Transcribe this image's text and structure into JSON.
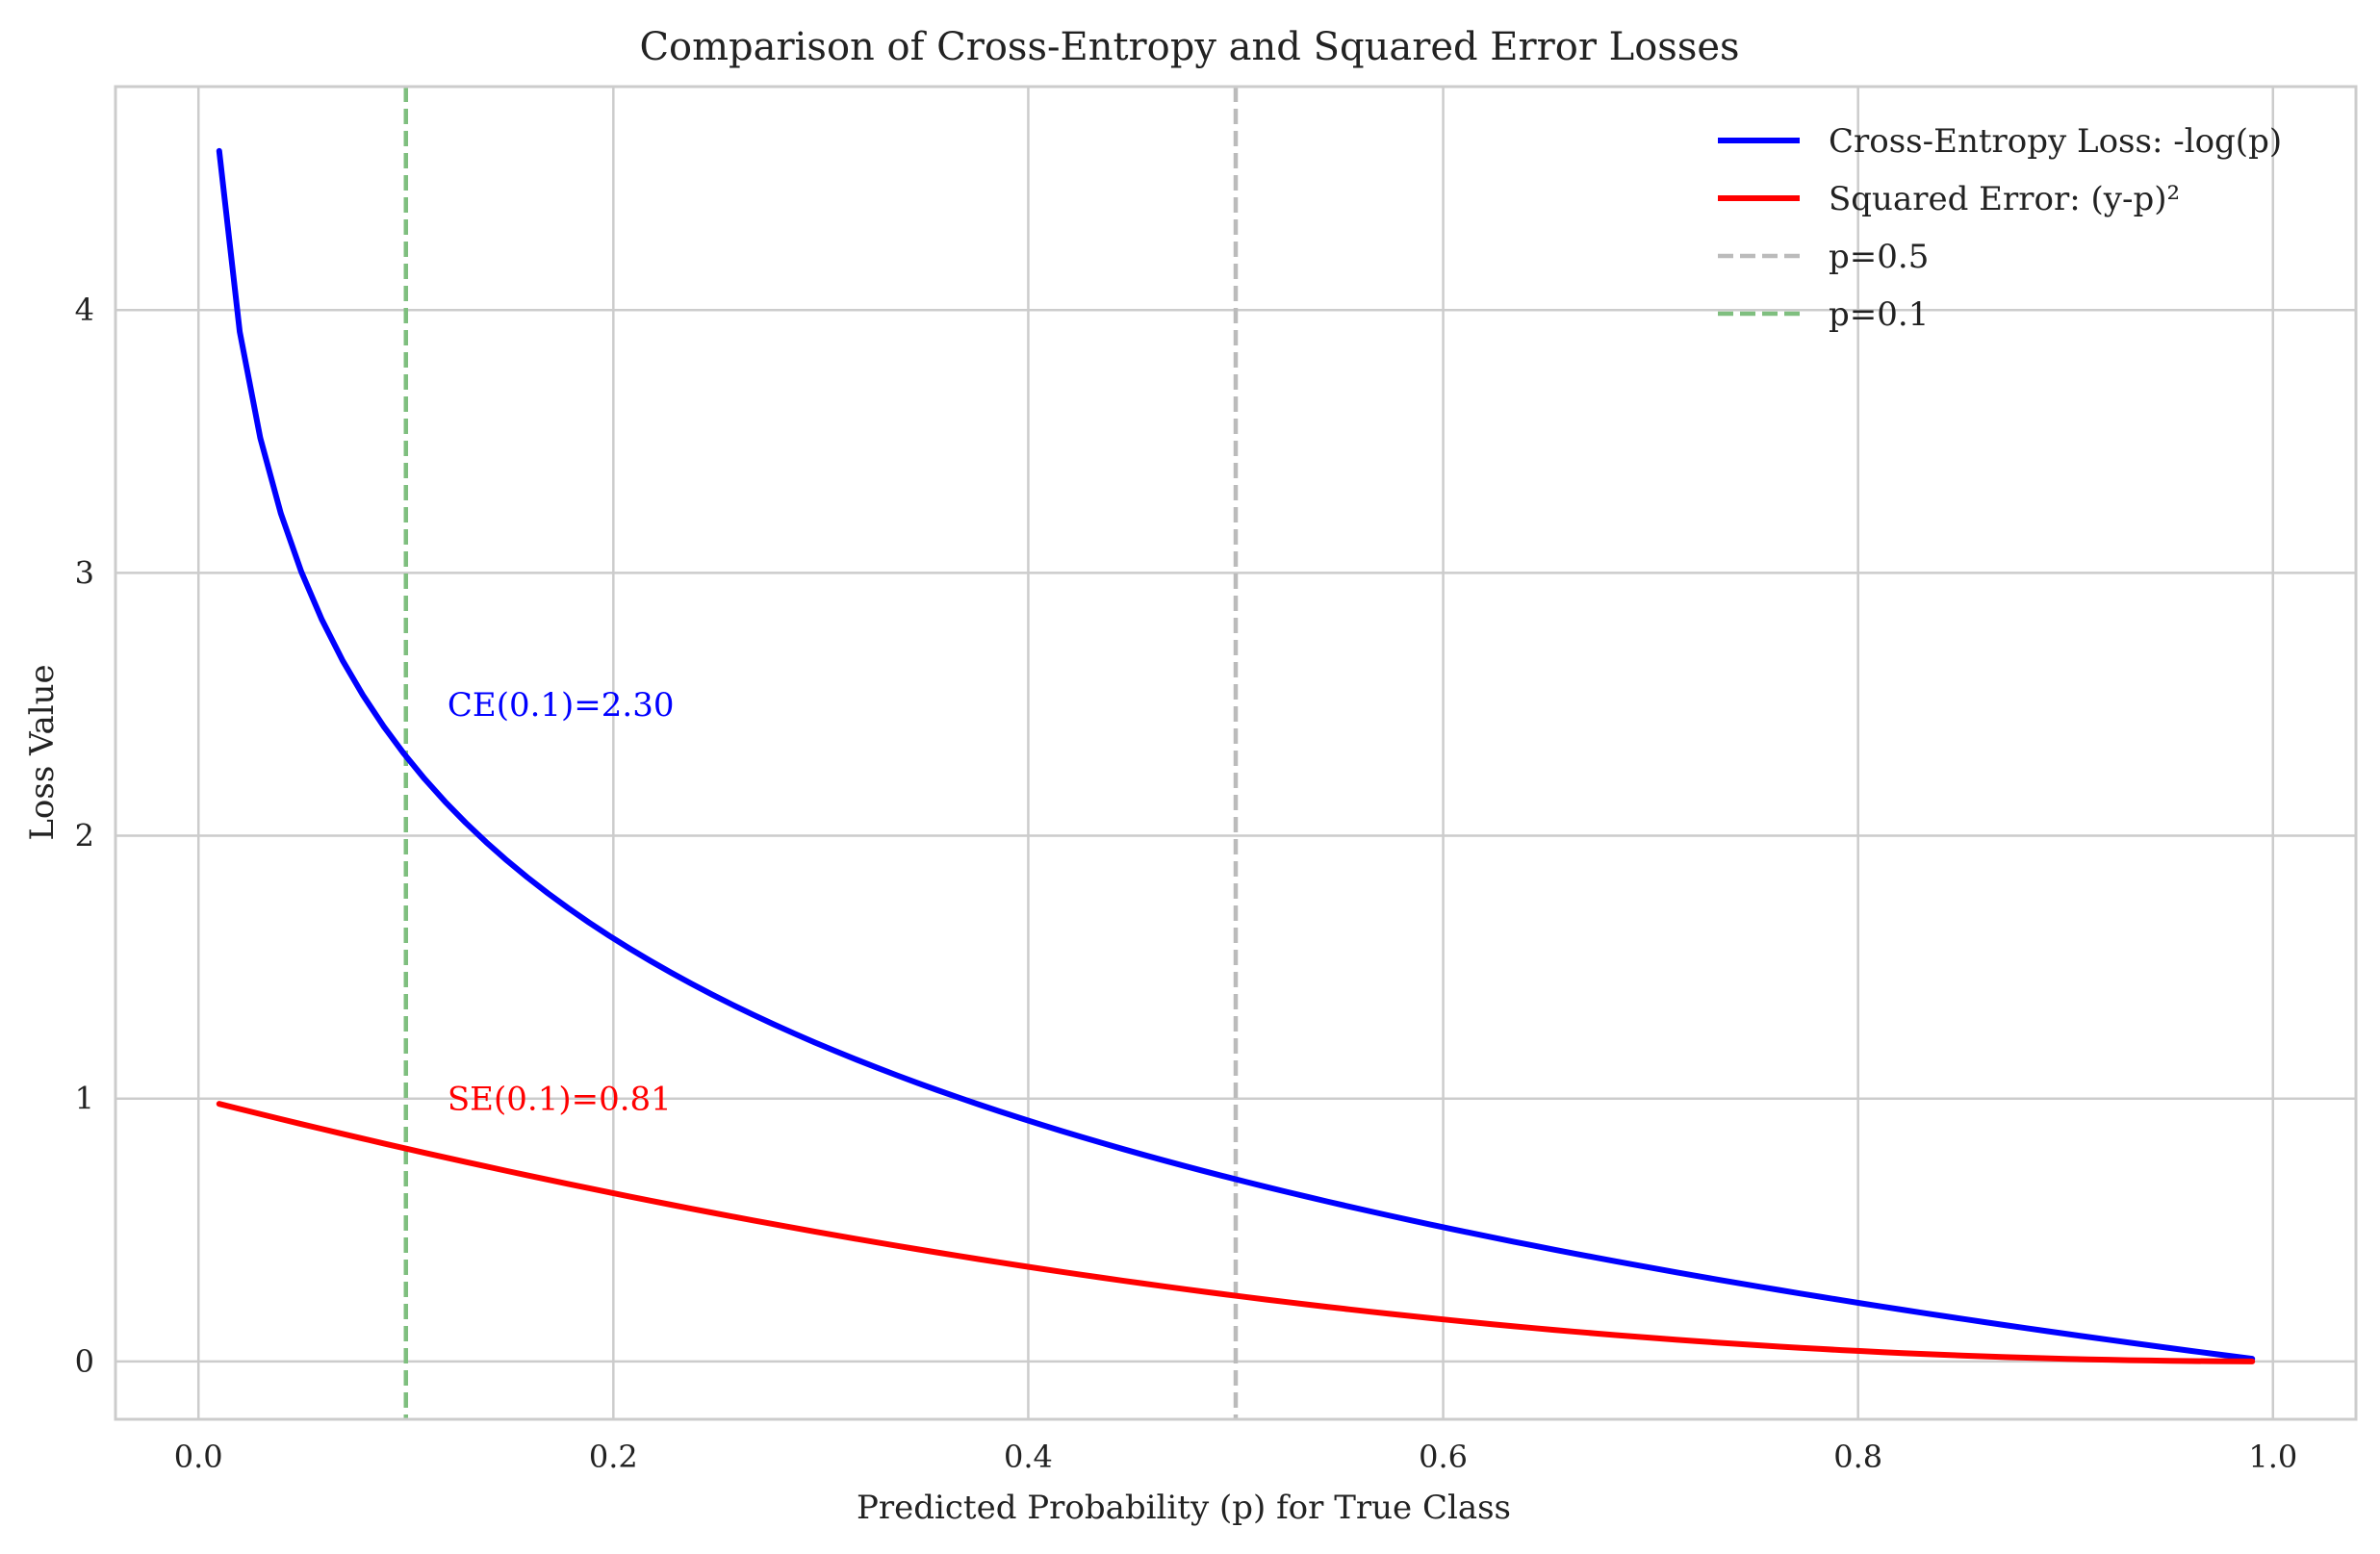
{
  "chart_data": {
    "type": "line",
    "title": "Comparison of Cross-Entropy and Squared Error Losses",
    "xlabel": "Predicted Probability (p) for True Class",
    "ylabel": "Loss Value",
    "xlim": [
      -0.04,
      1.04
    ],
    "ylim": [
      -0.22,
      4.85
    ],
    "xticks": [
      0.0,
      0.2,
      0.4,
      0.6,
      0.8,
      1.0
    ],
    "xtick_labels": [
      "0.0",
      "0.2",
      "0.4",
      "0.6",
      "0.8",
      "1.0"
    ],
    "yticks": [
      0,
      1,
      2,
      3,
      4
    ],
    "ytick_labels": [
      "0",
      "1",
      "2",
      "3",
      "4"
    ],
    "grid": true,
    "legend_position": "top-right",
    "series": [
      {
        "name": "Cross-Entropy Loss: -log(p)",
        "color": "#0000ff",
        "formula": "ce",
        "x_range": [
          0.01,
          0.99
        ],
        "num_points": 100
      },
      {
        "name": "Squared Error: (y-p)²",
        "color": "#ff0000",
        "formula": "se",
        "x_range": [
          0.01,
          0.99
        ],
        "num_points": 100
      }
    ],
    "vlines": [
      {
        "name": "p=0.5",
        "x": 0.5,
        "color": "#bbbbbb",
        "style": "dashed"
      },
      {
        "name": "p=0.1",
        "x": 0.1,
        "color": "#7fbf7f",
        "style": "dashed"
      }
    ],
    "annotations": [
      {
        "text": "CE(0.1)=2.30",
        "x": 0.12,
        "y": 2.5,
        "color": "#0000ff"
      },
      {
        "text": "SE(0.1)=0.81",
        "x": 0.12,
        "y": 1.0,
        "color": "#ff0000"
      }
    ],
    "colors": {
      "grid": "#cccccc",
      "frame": "#cccccc",
      "text": "#222222"
    }
  }
}
